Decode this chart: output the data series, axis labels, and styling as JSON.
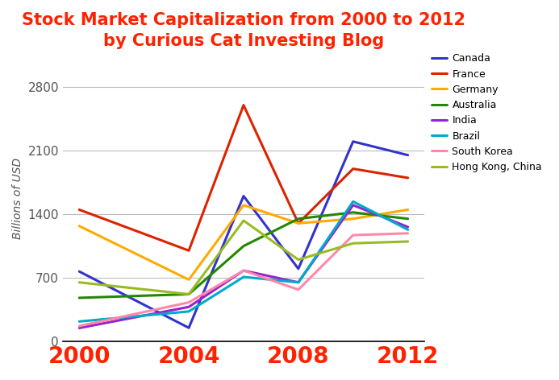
{
  "title": "Stock Market Capitalization from 2000 to 2012\nby Curious Cat Investing Blog",
  "ylabel": "Billions of USD",
  "xlabel": "",
  "colors": {
    "Canada": "#3333cc",
    "France": "#dd2200",
    "Germany": "#ffaa00",
    "Australia": "#228800",
    "India": "#9922cc",
    "Brazil": "#00aacc",
    "South Korea": "#ff88aa",
    "Hong Kong, China": "#99bb22"
  },
  "series": {
    "Canada": {
      "x": [
        2000,
        2004,
        2006,
        2008,
        2010,
        2012
      ],
      "y": [
        770,
        150,
        1600,
        800,
        2200,
        2050
      ]
    },
    "France": {
      "x": [
        2000,
        2004,
        2006,
        2008,
        2010,
        2012
      ],
      "y": [
        1450,
        1000,
        2600,
        1300,
        1900,
        1800
      ]
    },
    "Germany": {
      "x": [
        2000,
        2004,
        2006,
        2008,
        2010,
        2012
      ],
      "y": [
        1270,
        680,
        1500,
        1300,
        1350,
        1450
      ]
    },
    "Australia": {
      "x": [
        2000,
        2004,
        2006,
        2008,
        2010,
        2012
      ],
      "y": [
        480,
        520,
        1050,
        1350,
        1420,
        1350
      ]
    },
    "India": {
      "x": [
        2000,
        2004,
        2006,
        2008,
        2010,
        2012
      ],
      "y": [
        148,
        380,
        780,
        650,
        1500,
        1260
      ]
    },
    "Brazil": {
      "x": [
        2000,
        2004,
        2006,
        2008,
        2010,
        2012
      ],
      "y": [
        220,
        330,
        710,
        650,
        1540,
        1230
      ]
    },
    "South Korea": {
      "x": [
        2000,
        2004,
        2006,
        2008,
        2010,
        2012
      ],
      "y": [
        170,
        430,
        780,
        570,
        1170,
        1190
      ]
    },
    "Hong Kong, China": {
      "x": [
        2000,
        2004,
        2006,
        2008,
        2010,
        2012
      ],
      "y": [
        650,
        520,
        1330,
        900,
        1080,
        1100
      ]
    }
  },
  "ylim": [
    0,
    3150
  ],
  "yticks": [
    0,
    700,
    1400,
    2100,
    2800
  ],
  "xticks": [
    2000,
    2004,
    2008,
    2012
  ],
  "title_color": "#ff2200",
  "axis_label_color": "#555555",
  "tick_color": "#555555",
  "grid_color": "#bbbbbb",
  "background_color": "#ffffff",
  "title_fontsize": 15,
  "axis_label_fontsize": 10,
  "ytick_fontsize": 11,
  "xtick_fontsize": 20,
  "legend_fontsize": 9,
  "linewidth": 2.2
}
